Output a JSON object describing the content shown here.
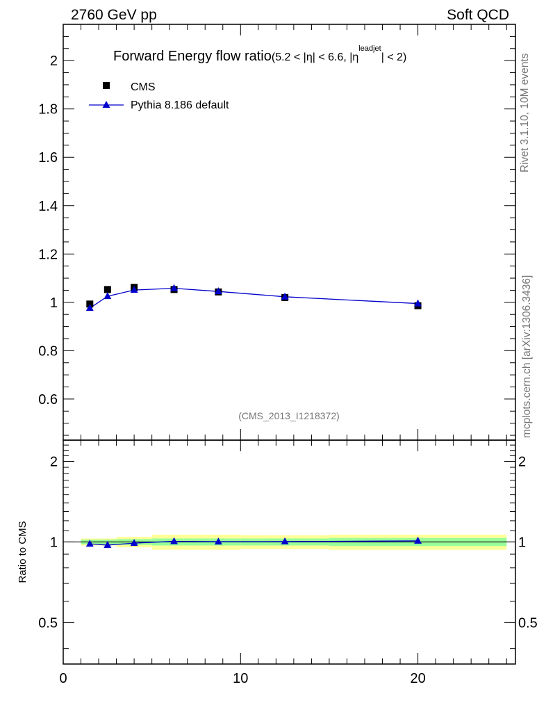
{
  "header": {
    "left": "2760 GeV pp",
    "right": "Soft QCD"
  },
  "side_labels": {
    "rivet": "Rivet 3.1.10,  10M events",
    "site": "mcplots.cern.ch [arXiv:1306.3436]"
  },
  "watermark": "(CMS_2013_I1218372)",
  "title": {
    "main": "Forward Energy flow ratio",
    "cut_a": "(5.2 < |η| < 6.6, |η",
    "superscript": "leadjet",
    "cut_b": "| < 2)"
  },
  "legend": {
    "data_label": "CMS",
    "mc_label": "Pythia 8.186 default"
  },
  "colors": {
    "mc": "#0000cc",
    "band_inner": "#99ff99",
    "band_outer": "#ffff99"
  },
  "chart_data": [
    {
      "type": "scatter",
      "panel": "main",
      "xlim": [
        0,
        25.5
      ],
      "ylim": [
        0.43,
        2.15
      ],
      "yticks": [
        0.6,
        0.8,
        1.0,
        1.2,
        1.4,
        1.6,
        1.8,
        2.0
      ],
      "ytick_labels": [
        "0.6",
        "0.8",
        "1",
        "1.2",
        "1.4",
        "1.6",
        "1.8",
        "2"
      ],
      "series": [
        {
          "name": "CMS",
          "marker": "square",
          "points": [
            {
              "x": 1.5,
              "y": 0.993,
              "err": 0.008,
              "xlo": 1.0,
              "xhi": 2.0
            },
            {
              "x": 2.5,
              "y": 1.053,
              "err": 0.008,
              "xlo": 2.0,
              "xhi": 3.0
            },
            {
              "x": 4.0,
              "y": 1.062,
              "err": 0.008,
              "xlo": 3.0,
              "xhi": 5.0
            },
            {
              "x": 6.25,
              "y": 1.053,
              "err": 0.008,
              "xlo": 5.0,
              "xhi": 7.5
            },
            {
              "x": 8.75,
              "y": 1.043,
              "err": 0.008,
              "xlo": 7.5,
              "xhi": 10.0
            },
            {
              "x": 12.5,
              "y": 1.02,
              "err": 0.008,
              "xlo": 10.0,
              "xhi": 15.0
            },
            {
              "x": 20.0,
              "y": 0.986,
              "err": 0.008,
              "xlo": 15.0,
              "xhi": 25.0
            }
          ]
        },
        {
          "name": "Pythia 8.186 default",
          "marker": "triangle",
          "points": [
            {
              "x": 1.5,
              "y": 0.976,
              "err": 0.004
            },
            {
              "x": 2.5,
              "y": 1.025,
              "err": 0.004
            },
            {
              "x": 4.0,
              "y": 1.051,
              "err": 0.004
            },
            {
              "x": 6.25,
              "y": 1.058,
              "err": 0.005
            },
            {
              "x": 8.75,
              "y": 1.045,
              "err": 0.005
            },
            {
              "x": 12.5,
              "y": 1.023,
              "err": 0.006
            },
            {
              "x": 20.0,
              "y": 0.995,
              "err": 0.012
            }
          ]
        }
      ]
    },
    {
      "type": "line",
      "panel": "ratio",
      "ylabel": "Ratio to CMS",
      "xlim": [
        0,
        25.5
      ],
      "ylim": [
        0.35,
        2.4
      ],
      "ylog": true,
      "yticks": [
        0.5,
        1,
        2
      ],
      "ytick_labels": [
        "0.5",
        "1",
        "2"
      ],
      "xticks": [
        0,
        10,
        20
      ],
      "xtick_labels": [
        "0",
        "10",
        "20"
      ],
      "bands": [
        {
          "xlo": 1.0,
          "xhi": 2.0,
          "inner": 0.02,
          "outer": 0.03
        },
        {
          "xlo": 2.0,
          "xhi": 3.0,
          "inner": 0.02,
          "outer": 0.03
        },
        {
          "xlo": 3.0,
          "xhi": 5.0,
          "inner": 0.025,
          "outer": 0.045
        },
        {
          "xlo": 5.0,
          "xhi": 7.5,
          "inner": 0.03,
          "outer": 0.065
        },
        {
          "xlo": 7.5,
          "xhi": 10.0,
          "inner": 0.03,
          "outer": 0.065
        },
        {
          "xlo": 10.0,
          "xhi": 15.0,
          "inner": 0.03,
          "outer": 0.06
        },
        {
          "xlo": 15.0,
          "xhi": 25.0,
          "inner": 0.035,
          "outer": 0.065
        }
      ],
      "series": [
        {
          "name": "Pythia 8.186 default / CMS",
          "points": [
            {
              "x": 1.5,
              "y": 0.983
            },
            {
              "x": 2.5,
              "y": 0.973
            },
            {
              "x": 4.0,
              "y": 0.99
            },
            {
              "x": 6.25,
              "y": 1.005
            },
            {
              "x": 8.75,
              "y": 1.002
            },
            {
              "x": 12.5,
              "y": 1.003
            },
            {
              "x": 20.0,
              "y": 1.009
            }
          ]
        }
      ]
    }
  ]
}
